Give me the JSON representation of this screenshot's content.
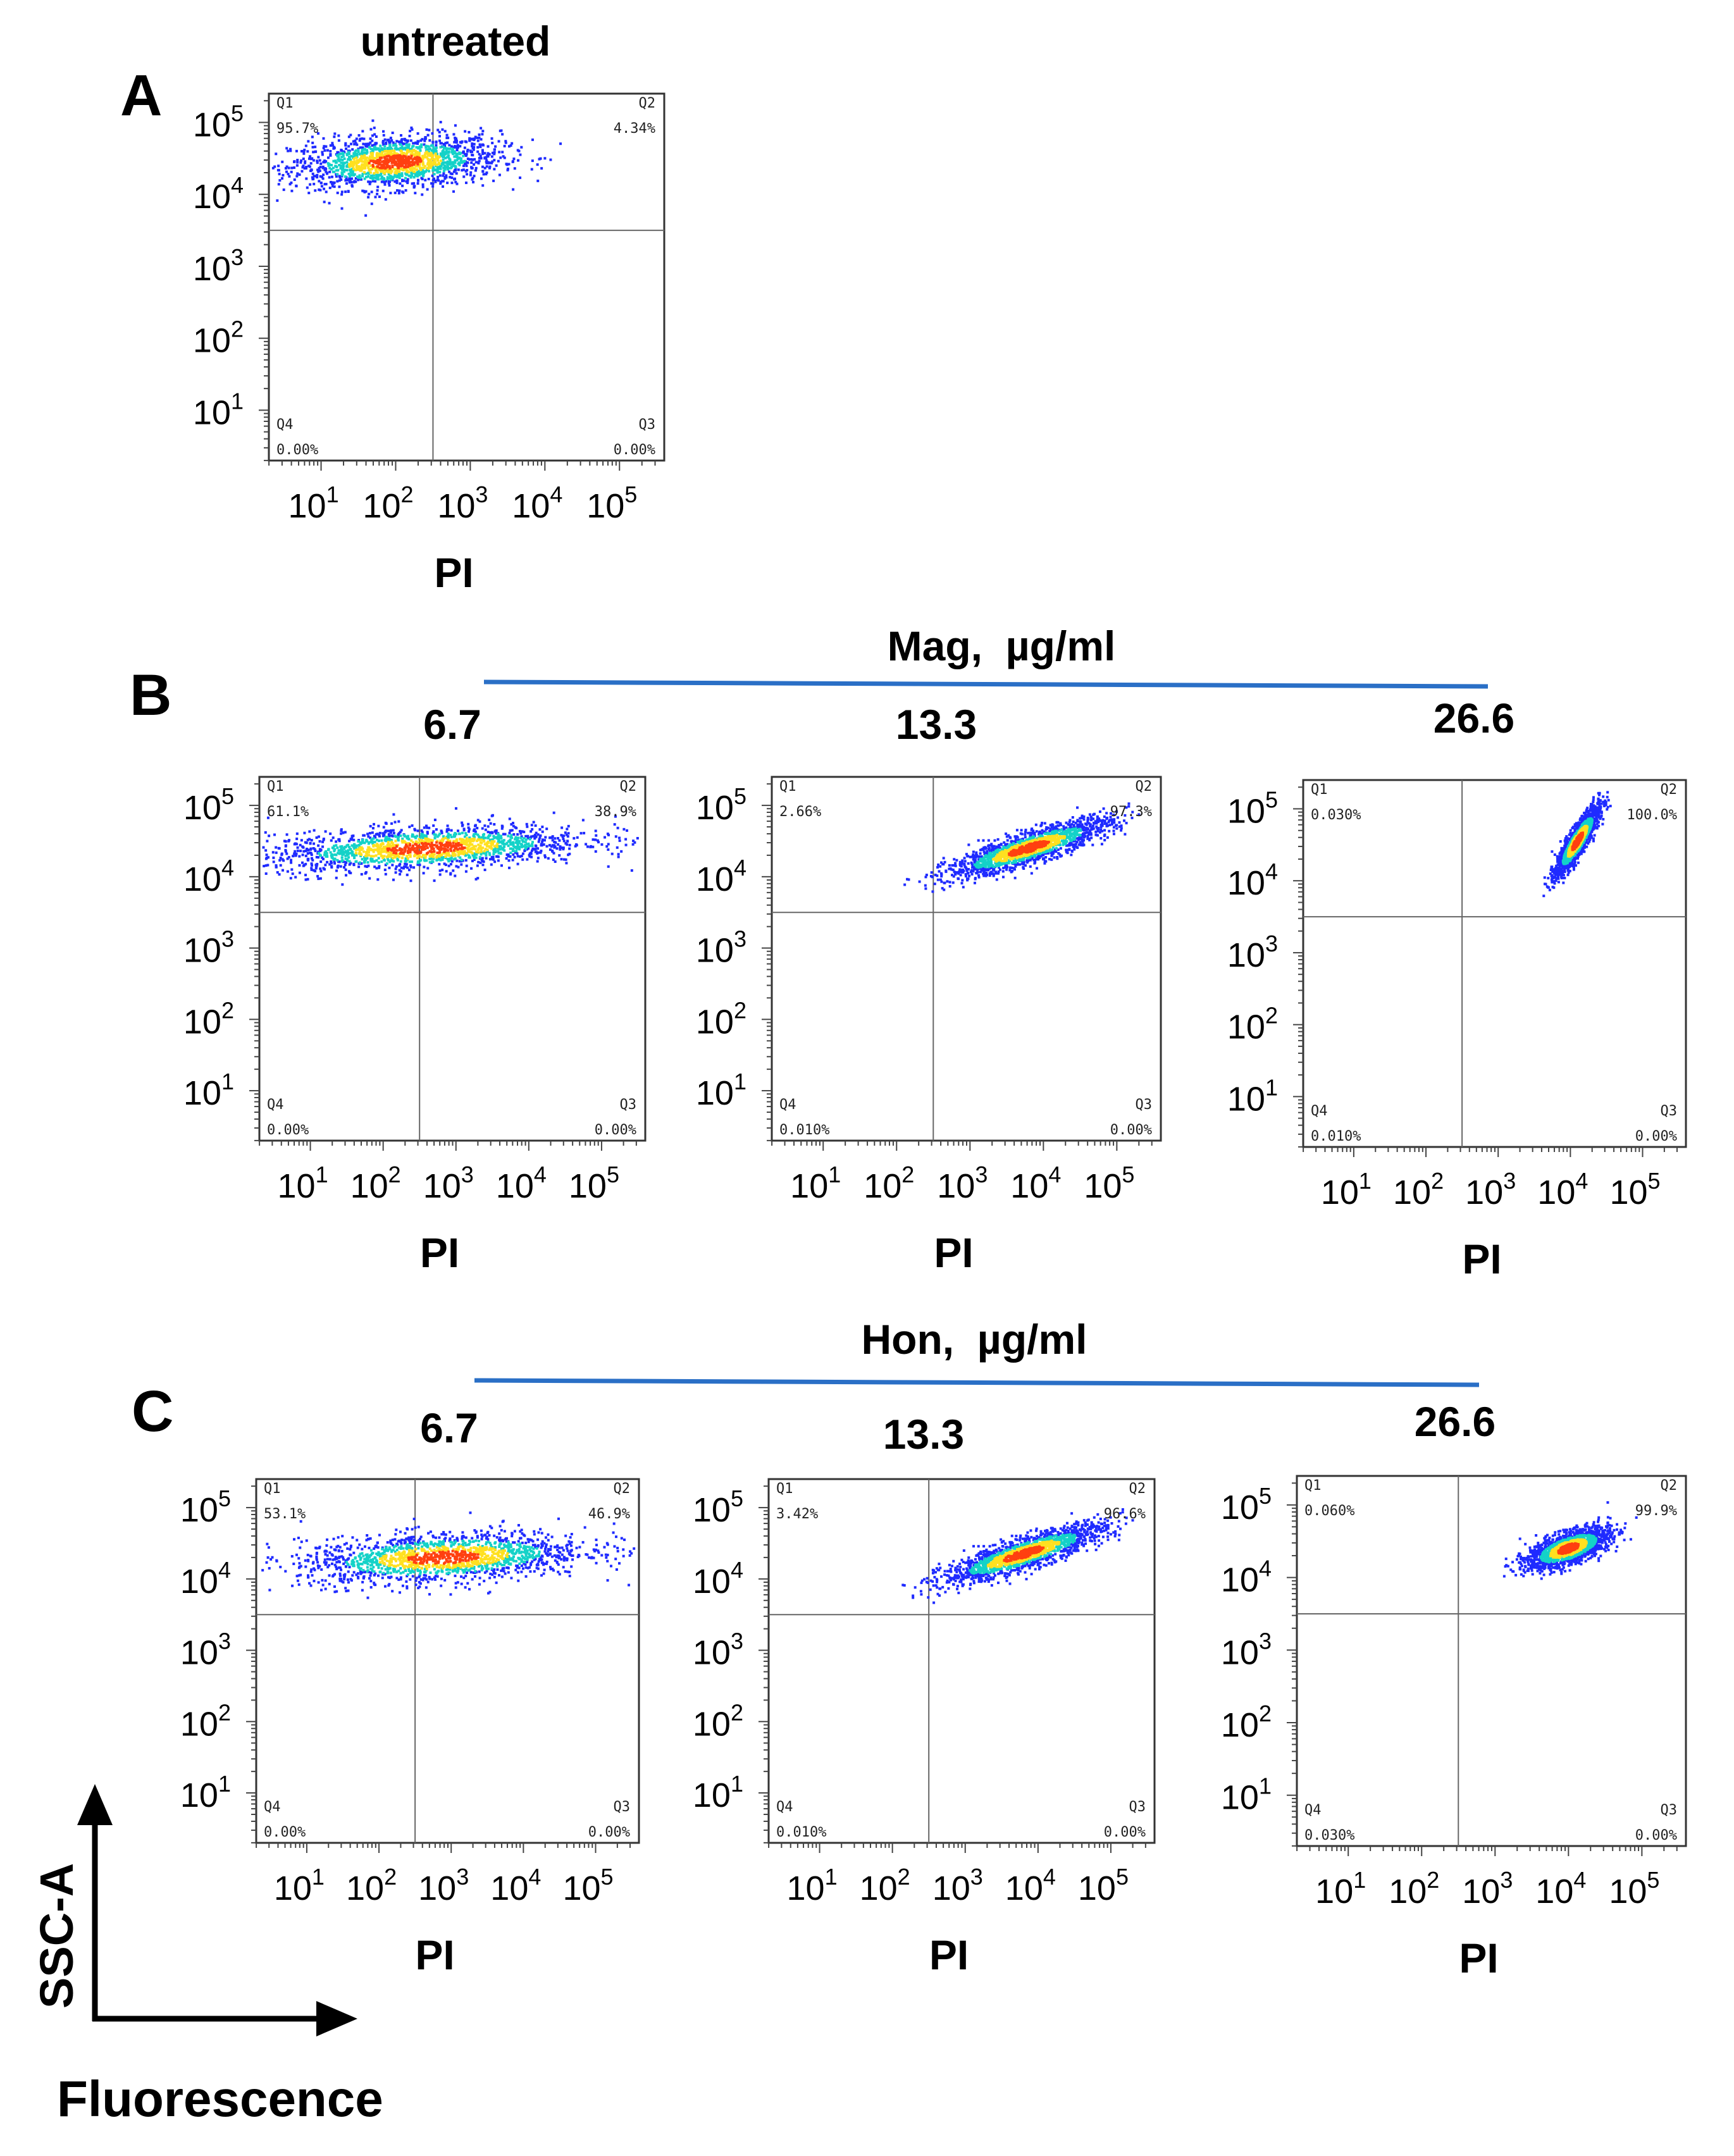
{
  "chart_data": [
    {
      "panel": "A",
      "type": "scatter",
      "title": "untreated",
      "xlabel": "PI",
      "x_ticks": [
        "10",
        "10",
        "10",
        "10",
        "10"
      ],
      "x_tick_exponents": [
        "1",
        "2",
        "3",
        "4",
        "5"
      ],
      "y_ticks": [
        "10",
        "10",
        "10",
        "10",
        "10"
      ],
      "y_tick_exponents": [
        "1",
        "2",
        "3",
        "4",
        "5"
      ],
      "quadrants": [
        {
          "name": "Q1",
          "value": "95.7%"
        },
        {
          "name": "Q2",
          "value": "4.34%"
        },
        {
          "name": "Q3",
          "value": "0.00%"
        },
        {
          "name": "Q4",
          "value": "0.00%"
        }
      ],
      "cloud": {
        "x_log_center": 2.0,
        "x_log_spread": 0.7,
        "y_log_center": 4.45,
        "y_log_spread": 0.18,
        "shape": "horizontal"
      }
    },
    {
      "panel": "B",
      "type": "scatter",
      "title": "6.7",
      "xlabel": "PI",
      "x_ticks": [
        "10",
        "10",
        "10",
        "10",
        "10"
      ],
      "x_tick_exponents": [
        "1",
        "2",
        "3",
        "4",
        "5"
      ],
      "y_ticks": [
        "10",
        "10",
        "10",
        "10",
        "10"
      ],
      "y_tick_exponents": [
        "1",
        "2",
        "3",
        "4",
        "5"
      ],
      "quadrants": [
        {
          "name": "Q1",
          "value": "61.1%"
        },
        {
          "name": "Q2",
          "value": "38.9%"
        },
        {
          "name": "Q3",
          "value": "0.00%"
        },
        {
          "name": "Q4",
          "value": "0.00%"
        }
      ],
      "cloud": {
        "x_log_center": 2.6,
        "x_log_spread": 1.1,
        "y_log_center": 4.4,
        "y_log_spread": 0.15,
        "shape": "horizontal"
      }
    },
    {
      "panel": "B",
      "type": "scatter",
      "title": "13.3",
      "xlabel": "PI",
      "x_ticks": [
        "10",
        "10",
        "10",
        "10",
        "10"
      ],
      "x_tick_exponents": [
        "1",
        "2",
        "3",
        "4",
        "5"
      ],
      "y_ticks": [
        "10",
        "10",
        "10",
        "10",
        "10"
      ],
      "y_tick_exponents": [
        "1",
        "2",
        "3",
        "4",
        "5"
      ],
      "quadrants": [
        {
          "name": "Q1",
          "value": "2.66%"
        },
        {
          "name": "Q2",
          "value": "97.3%"
        },
        {
          "name": "Q3",
          "value": "0.00%"
        },
        {
          "name": "Q4",
          "value": "0.010%"
        }
      ],
      "cloud": {
        "x_log_center": 3.8,
        "x_log_spread": 0.55,
        "y_log_center": 4.4,
        "y_log_spread": 0.18,
        "shape": "diagonal"
      }
    },
    {
      "panel": "B",
      "type": "scatter",
      "title": "26.6",
      "xlabel": "PI",
      "x_ticks": [
        "10",
        "10",
        "10",
        "10",
        "10"
      ],
      "x_tick_exponents": [
        "1",
        "2",
        "3",
        "4",
        "5"
      ],
      "y_ticks": [
        "10",
        "10",
        "10",
        "10",
        "10"
      ],
      "y_tick_exponents": [
        "1",
        "2",
        "3",
        "4",
        "5"
      ],
      "quadrants": [
        {
          "name": "Q1",
          "value": "0.030%"
        },
        {
          "name": "Q2",
          "value": "100.0%"
        },
        {
          "name": "Q3",
          "value": "0.00%"
        },
        {
          "name": "Q4",
          "value": "0.010%"
        }
      ],
      "cloud": {
        "x_log_center": 4.1,
        "x_log_spread": 0.15,
        "y_log_center": 4.55,
        "y_log_spread": 0.22,
        "shape": "tight"
      }
    },
    {
      "panel": "C",
      "type": "scatter",
      "title": "6.7",
      "xlabel": "PI",
      "x_ticks": [
        "10",
        "10",
        "10",
        "10",
        "10"
      ],
      "x_tick_exponents": [
        "1",
        "2",
        "3",
        "4",
        "5"
      ],
      "y_ticks": [
        "10",
        "10",
        "10",
        "10",
        "10"
      ],
      "y_tick_exponents": [
        "1",
        "2",
        "3",
        "4",
        "5"
      ],
      "quadrants": [
        {
          "name": "Q1",
          "value": "53.1%"
        },
        {
          "name": "Q2",
          "value": "46.9%"
        },
        {
          "name": "Q3",
          "value": "0.00%"
        },
        {
          "name": "Q4",
          "value": "0.00%"
        }
      ],
      "cloud": {
        "x_log_center": 2.9,
        "x_log_spread": 1.0,
        "y_log_center": 4.3,
        "y_log_spread": 0.17,
        "shape": "horizontal"
      }
    },
    {
      "panel": "C",
      "type": "scatter",
      "title": "13.3",
      "xlabel": "PI",
      "x_ticks": [
        "10",
        "10",
        "10",
        "10",
        "10"
      ],
      "x_tick_exponents": [
        "1",
        "2",
        "3",
        "4",
        "5"
      ],
      "y_ticks": [
        "10",
        "10",
        "10",
        "10",
        "10"
      ],
      "y_tick_exponents": [
        "1",
        "2",
        "3",
        "4",
        "5"
      ],
      "quadrants": [
        {
          "name": "Q1",
          "value": "3.42%"
        },
        {
          "name": "Q2",
          "value": "96.6%"
        },
        {
          "name": "Q3",
          "value": "0.00%"
        },
        {
          "name": "Q4",
          "value": "0.010%"
        }
      ],
      "cloud": {
        "x_log_center": 3.8,
        "x_log_spread": 0.55,
        "y_log_center": 4.35,
        "y_log_spread": 0.18,
        "shape": "diagonal"
      }
    },
    {
      "panel": "C",
      "type": "scatter",
      "title": "26.6",
      "xlabel": "PI",
      "x_ticks": [
        "10",
        "10",
        "10",
        "10",
        "10"
      ],
      "x_tick_exponents": [
        "1",
        "2",
        "3",
        "4",
        "5"
      ],
      "y_ticks": [
        "10",
        "10",
        "10",
        "10",
        "10"
      ],
      "y_tick_exponents": [
        "1",
        "2",
        "3",
        "4",
        "5"
      ],
      "quadrants": [
        {
          "name": "Q1",
          "value": "0.060%"
        },
        {
          "name": "Q2",
          "value": "99.9%"
        },
        {
          "name": "Q3",
          "value": "0.00%"
        },
        {
          "name": "Q4",
          "value": "0.030%"
        }
      ],
      "cloud": {
        "x_log_center": 4.0,
        "x_log_spread": 0.28,
        "y_log_center": 4.4,
        "y_log_spread": 0.18,
        "shape": "diagonal"
      }
    }
  ],
  "labels": {
    "panel_a": "A",
    "panel_b": "B",
    "panel_c": "C",
    "mag_header": "Mag,  µg/ml",
    "hon_header": "Hon,  µg/ml",
    "axis_y_legend": "SSC-A",
    "axis_x_legend": "Fluorescence"
  },
  "colors": {
    "bracket_line": "#2a6fc6",
    "density_low": "#1f2bff",
    "density_mid": "#14d2c8",
    "density_high": "#ffe020",
    "density_peak": "#ff4010"
  }
}
